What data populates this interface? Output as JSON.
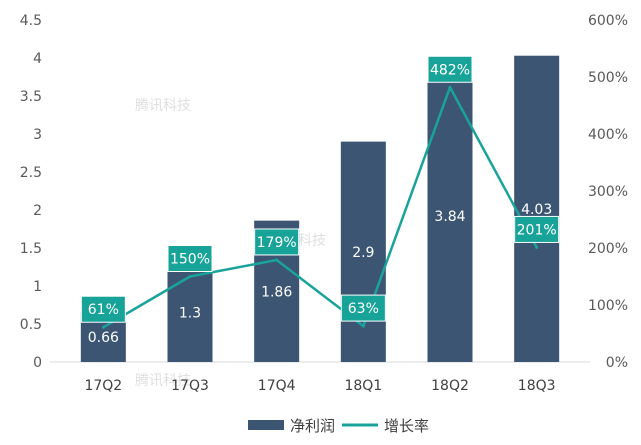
{
  "chart_data": {
    "type": "bar",
    "categories": [
      "17Q2",
      "17Q3",
      "17Q4",
      "18Q1",
      "18Q2",
      "18Q3"
    ],
    "series": [
      {
        "name": "净利润",
        "type": "bar",
        "axis": "left",
        "values": [
          0.66,
          1.3,
          1.86,
          2.9,
          3.84,
          4.03
        ],
        "labels": [
          "0.66",
          "1.3",
          "1.86",
          "2.9",
          "3.84",
          "4.03"
        ]
      },
      {
        "name": "增长率",
        "type": "line",
        "axis": "right",
        "values": [
          61,
          150,
          179,
          63,
          482,
          201
        ],
        "labels": [
          "61%",
          "150%",
          "179%",
          "63%",
          "482%",
          "201%"
        ]
      }
    ],
    "y_left": {
      "ylim": [
        0,
        4.5
      ],
      "ticks": [
        "0",
        "0.5",
        "1",
        "1.5",
        "2",
        "2.5",
        "3",
        "3.5",
        "4",
        "4.5"
      ]
    },
    "y_right": {
      "ylim": [
        0,
        600
      ],
      "ticks": [
        "0%",
        "100%",
        "200%",
        "300%",
        "400%",
        "500%",
        "600%"
      ]
    },
    "grid": false,
    "legend": "bottom",
    "colors": {
      "bar": "#3b5573",
      "line": "#1aa39a",
      "label_box": "#17a397"
    }
  },
  "watermark": "腾讯科技"
}
